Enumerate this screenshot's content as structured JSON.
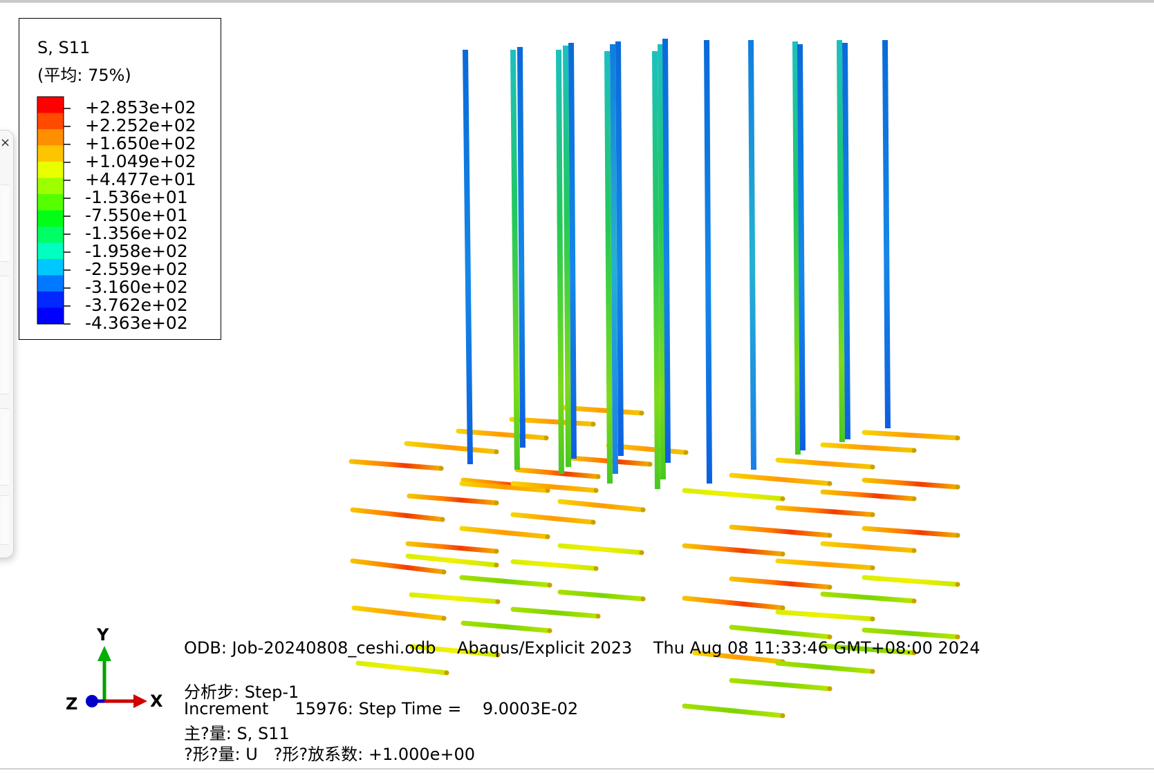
{
  "legend": {
    "title": "S, S11",
    "subtitle": "(平均: 75%)",
    "values": [
      "+2.853e+02",
      "+2.252e+02",
      "+1.650e+02",
      "+1.049e+02",
      "+4.477e+01",
      "-1.536e+01",
      "-7.550e+01",
      "-1.356e+02",
      "-1.958e+02",
      "-2.559e+02",
      "-3.160e+02",
      "-3.762e+02",
      "-4.363e+02"
    ],
    "band_colors": [
      "#ff0000",
      "#ff4a00",
      "#ff8f00",
      "#ffc400",
      "#e9ff00",
      "#9dff00",
      "#55ff00",
      "#00ff14",
      "#00ff66",
      "#00ffc0",
      "#00c8ff",
      "#0078ff",
      "#0028ff",
      "#0000ff"
    ]
  },
  "info": {
    "odb_line": "ODB: Job-20240808_ceshi.odb    Abaqus/Explicit 2023    Thu Aug 08 11:33:46 GMT+08:00 2024",
    "step_line": "分析步: Step-1",
    "increment_line": "Increment     15976: Step Time =    9.0003E-02",
    "primary_line": "主?量: S, S11",
    "deformed_line": "?形?量: U   ?形?放系数: +1.000e+00"
  },
  "triad": {
    "x_label": "X",
    "y_label": "Y",
    "z_label": "Z"
  },
  "side_panel": {
    "close_glyph": "×"
  }
}
